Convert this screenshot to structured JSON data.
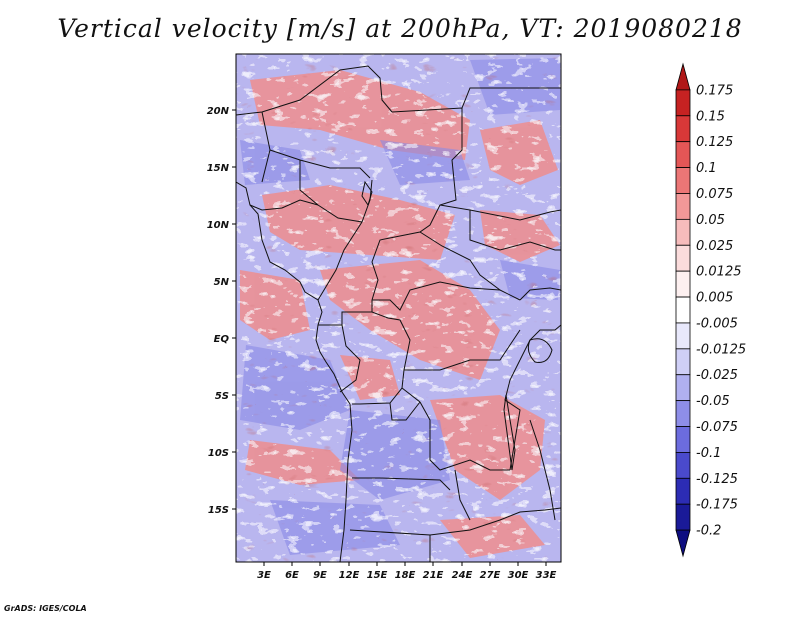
{
  "title": "Vertical velocity [m/s] at 200hPa, VT: 2019080218",
  "credit": "GrADS: IGES/COLA",
  "map": {
    "lat_labels": [
      "20N",
      "15N",
      "10N",
      "5N",
      "EQ",
      "5S",
      "10S",
      "15S"
    ],
    "lon_labels": [
      "3E",
      "6E",
      "9E",
      "12E",
      "15E",
      "18E",
      "21E",
      "24E",
      "27E",
      "30E",
      "33E"
    ],
    "lon_range": [
      0,
      34.5
    ],
    "lat_range": [
      -19.8,
      24.5
    ]
  },
  "colorbar": {
    "labels": [
      "0.175",
      "0.15",
      "0.125",
      "0.1",
      "0.075",
      "0.05",
      "0.025",
      "0.0125",
      "0.005",
      "-0.005",
      "-0.0125",
      "-0.025",
      "-0.05",
      "-0.075",
      "-0.1",
      "-0.125",
      "-0.175",
      "-0.2"
    ],
    "colors": [
      "#b01818",
      "#c62222",
      "#d83838",
      "#e45656",
      "#ec7676",
      "#f29898",
      "#f7bcbc",
      "#fbdcdc",
      "#fdf0f0",
      "#ffffff",
      "#e8e8fb",
      "#cfcff6",
      "#b0b0f0",
      "#8e8ee8",
      "#6c6cde",
      "#4a4acc",
      "#2c2cb4",
      "#1a1a98",
      "#0e0e80"
    ]
  }
}
